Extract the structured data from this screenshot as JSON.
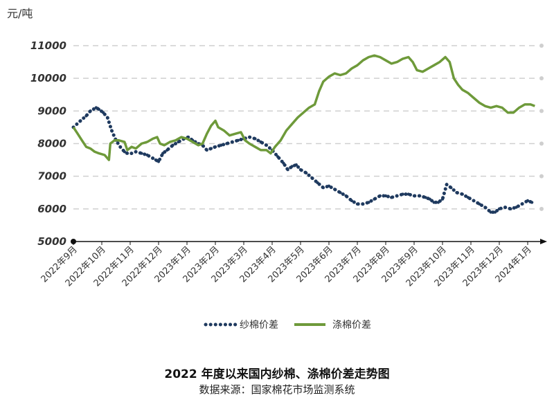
{
  "chart_data": {
    "type": "line",
    "unit": "元/吨",
    "title": "2022 年度以来国内纱棉、涤棉价差走势图",
    "source": "数据来源：国家棉花市场监测系统",
    "ylim": [
      5000,
      11000
    ],
    "yticks": [
      5000,
      6000,
      7000,
      8000,
      9000,
      10000,
      11000
    ],
    "grid": true,
    "legend_position": "bottom",
    "colors": {
      "series1": "#1f3a5f",
      "series2": "#6e9a3a",
      "grid": "#cfcfcf",
      "axis": "#111111"
    },
    "x_labels": [
      "2022年9月",
      "2022年10月",
      "2022年11月",
      "2022年12月",
      "2023年1月",
      "2023年2月",
      "2023年3月",
      "2023年4月",
      "2023年5月",
      "2023年6月",
      "2023年7月",
      "2023年8月",
      "2023年9月",
      "2023年10月",
      "2023年11月",
      "2023年12月",
      "2024年1月"
    ],
    "series": [
      {
        "name": "纱棉价差",
        "style": "dotted",
        "points": [
          [
            0.0,
            8500
          ],
          [
            0.25,
            8700
          ],
          [
            0.45,
            8850
          ],
          [
            0.6,
            9000
          ],
          [
            0.8,
            9100
          ],
          [
            0.9,
            9050
          ],
          [
            1.05,
            8950
          ],
          [
            1.2,
            8800
          ],
          [
            1.35,
            8400
          ],
          [
            1.5,
            8100
          ],
          [
            1.65,
            7900
          ],
          [
            1.8,
            7750
          ],
          [
            1.9,
            7700
          ],
          [
            2.05,
            7700
          ],
          [
            2.2,
            7750
          ],
          [
            2.4,
            7700
          ],
          [
            2.6,
            7650
          ],
          [
            2.8,
            7550
          ],
          [
            2.9,
            7500
          ],
          [
            3.0,
            7450
          ],
          [
            3.15,
            7700
          ],
          [
            3.3,
            7800
          ],
          [
            3.5,
            7950
          ],
          [
            3.7,
            8050
          ],
          [
            3.9,
            8150
          ],
          [
            4.05,
            8200
          ],
          [
            4.2,
            8100
          ],
          [
            4.4,
            8000
          ],
          [
            4.55,
            7950
          ],
          [
            4.7,
            7800
          ],
          [
            4.85,
            7850
          ],
          [
            5.0,
            7900
          ],
          [
            5.2,
            7950
          ],
          [
            5.4,
            8000
          ],
          [
            5.6,
            8050
          ],
          [
            5.8,
            8100
          ],
          [
            6.0,
            8150
          ],
          [
            6.2,
            8200
          ],
          [
            6.4,
            8150
          ],
          [
            6.6,
            8050
          ],
          [
            6.8,
            7950
          ],
          [
            7.0,
            7800
          ],
          [
            7.2,
            7600
          ],
          [
            7.4,
            7400
          ],
          [
            7.55,
            7200
          ],
          [
            7.7,
            7300
          ],
          [
            7.85,
            7350
          ],
          [
            8.0,
            7200
          ],
          [
            8.2,
            7100
          ],
          [
            8.4,
            6950
          ],
          [
            8.6,
            6800
          ],
          [
            8.8,
            6650
          ],
          [
            9.0,
            6700
          ],
          [
            9.2,
            6600
          ],
          [
            9.4,
            6500
          ],
          [
            9.6,
            6400
          ],
          [
            9.8,
            6250
          ],
          [
            10.0,
            6150
          ],
          [
            10.2,
            6150
          ],
          [
            10.4,
            6200
          ],
          [
            10.6,
            6300
          ],
          [
            10.8,
            6400
          ],
          [
            11.0,
            6400
          ],
          [
            11.2,
            6350
          ],
          [
            11.4,
            6400
          ],
          [
            11.6,
            6450
          ],
          [
            11.8,
            6450
          ],
          [
            12.0,
            6400
          ],
          [
            12.2,
            6400
          ],
          [
            12.4,
            6350
          ],
          [
            12.55,
            6300
          ],
          [
            12.7,
            6200
          ],
          [
            12.85,
            6200
          ],
          [
            13.0,
            6300
          ],
          [
            13.15,
            6750
          ],
          [
            13.3,
            6650
          ],
          [
            13.5,
            6500
          ],
          [
            13.7,
            6450
          ],
          [
            13.9,
            6350
          ],
          [
            14.1,
            6250
          ],
          [
            14.3,
            6150
          ],
          [
            14.5,
            6050
          ],
          [
            14.7,
            5900
          ],
          [
            14.85,
            5900
          ],
          [
            15.0,
            6000
          ],
          [
            15.2,
            6050
          ],
          [
            15.4,
            6000
          ],
          [
            15.6,
            6050
          ],
          [
            15.8,
            6150
          ],
          [
            16.0,
            6250
          ],
          [
            16.15,
            6200
          ]
        ]
      },
      {
        "name": "涤棉价差",
        "style": "solid",
        "points": [
          [
            0.0,
            8500
          ],
          [
            0.15,
            8300
          ],
          [
            0.3,
            8100
          ],
          [
            0.45,
            7900
          ],
          [
            0.6,
            7850
          ],
          [
            0.75,
            7750
          ],
          [
            0.9,
            7700
          ],
          [
            1.1,
            7650
          ],
          [
            1.25,
            7500
          ],
          [
            1.3,
            8000
          ],
          [
            1.45,
            8100
          ],
          [
            1.6,
            8100
          ],
          [
            1.8,
            8050
          ],
          [
            1.9,
            7800
          ],
          [
            2.05,
            7900
          ],
          [
            2.2,
            7850
          ],
          [
            2.4,
            8000
          ],
          [
            2.6,
            8050
          ],
          [
            2.8,
            8150
          ],
          [
            2.95,
            8200
          ],
          [
            3.05,
            8000
          ],
          [
            3.2,
            7950
          ],
          [
            3.4,
            8050
          ],
          [
            3.6,
            8100
          ],
          [
            3.8,
            8200
          ],
          [
            4.0,
            8150
          ],
          [
            4.2,
            8050
          ],
          [
            4.4,
            7950
          ],
          [
            4.55,
            8000
          ],
          [
            4.7,
            8300
          ],
          [
            4.85,
            8550
          ],
          [
            5.0,
            8700
          ],
          [
            5.1,
            8500
          ],
          [
            5.3,
            8400
          ],
          [
            5.5,
            8250
          ],
          [
            5.7,
            8300
          ],
          [
            5.9,
            8350
          ],
          [
            6.05,
            8100
          ],
          [
            6.2,
            8000
          ],
          [
            6.4,
            7900
          ],
          [
            6.6,
            7800
          ],
          [
            6.8,
            7800
          ],
          [
            6.95,
            7700
          ],
          [
            7.1,
            7900
          ],
          [
            7.3,
            8100
          ],
          [
            7.5,
            8400
          ],
          [
            7.7,
            8600
          ],
          [
            7.9,
            8800
          ],
          [
            8.1,
            8950
          ],
          [
            8.3,
            9100
          ],
          [
            8.5,
            9200
          ],
          [
            8.65,
            9600
          ],
          [
            8.8,
            9900
          ],
          [
            9.0,
            10050
          ],
          [
            9.2,
            10150
          ],
          [
            9.4,
            10100
          ],
          [
            9.6,
            10150
          ],
          [
            9.8,
            10300
          ],
          [
            10.0,
            10400
          ],
          [
            10.2,
            10550
          ],
          [
            10.4,
            10650
          ],
          [
            10.6,
            10700
          ],
          [
            10.8,
            10650
          ],
          [
            11.0,
            10550
          ],
          [
            11.2,
            10450
          ],
          [
            11.4,
            10500
          ],
          [
            11.6,
            10600
          ],
          [
            11.8,
            10650
          ],
          [
            11.95,
            10500
          ],
          [
            12.1,
            10250
          ],
          [
            12.3,
            10200
          ],
          [
            12.5,
            10300
          ],
          [
            12.7,
            10400
          ],
          [
            12.9,
            10500
          ],
          [
            13.1,
            10650
          ],
          [
            13.25,
            10500
          ],
          [
            13.4,
            10000
          ],
          [
            13.55,
            9800
          ],
          [
            13.7,
            9650
          ],
          [
            13.9,
            9550
          ],
          [
            14.1,
            9400
          ],
          [
            14.3,
            9250
          ],
          [
            14.5,
            9150
          ],
          [
            14.7,
            9100
          ],
          [
            14.9,
            9150
          ],
          [
            15.1,
            9100
          ],
          [
            15.3,
            8950
          ],
          [
            15.5,
            8950
          ],
          [
            15.7,
            9100
          ],
          [
            15.9,
            9200
          ],
          [
            16.1,
            9200
          ],
          [
            16.25,
            9150
          ]
        ]
      }
    ]
  }
}
